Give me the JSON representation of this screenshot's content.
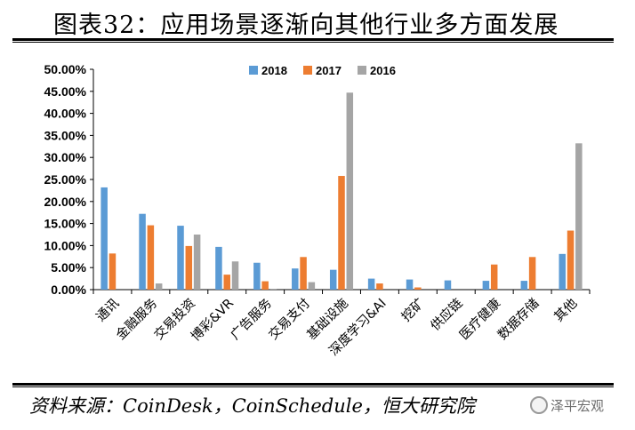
{
  "header": {
    "title": "图表32：应用场景逐渐向其他行业多方面发展"
  },
  "footer": {
    "source": "资料来源：CoinDesk，CoinSchedule，恒大研究院",
    "watermark": "泽平宏观"
  },
  "colors": {
    "series_2018": "#5B9BD5",
    "series_2017": "#ED7D31",
    "series_2016": "#A5A5A5"
  },
  "chart_data": {
    "type": "bar",
    "title": "",
    "xlabel": "",
    "ylabel": "",
    "ylim": [
      0,
      50
    ],
    "y_ticks": [
      "0.00%",
      "5.00%",
      "10.00%",
      "15.00%",
      "20.00%",
      "25.00%",
      "30.00%",
      "35.00%",
      "40.00%",
      "45.00%",
      "50.00%"
    ],
    "y_unit": "%",
    "grid": false,
    "legend_position": "top-center",
    "categories": [
      "通讯",
      "金融服务",
      "交易投资",
      "博彩&VR",
      "广告服务",
      "交易支付",
      "基础设施",
      "深度学习&AI",
      "挖矿",
      "供应链",
      "医疗健康",
      "数据存储",
      "其他"
    ],
    "series": [
      {
        "name": "2018",
        "values": [
          23.2,
          17.2,
          14.5,
          9.7,
          6.1,
          4.8,
          4.5,
          2.5,
          2.3,
          2.1,
          2.0,
          2.0,
          8.1
        ]
      },
      {
        "name": "2017",
        "values": [
          8.2,
          14.6,
          9.9,
          3.4,
          1.9,
          7.4,
          25.8,
          1.4,
          0.5,
          0.0,
          5.7,
          7.4,
          13.4
        ]
      },
      {
        "name": "2016",
        "values": [
          0.0,
          1.4,
          12.5,
          6.4,
          0.2,
          1.7,
          44.7,
          0.0,
          0.0,
          0.0,
          0.0,
          0.0,
          33.2
        ]
      }
    ]
  }
}
